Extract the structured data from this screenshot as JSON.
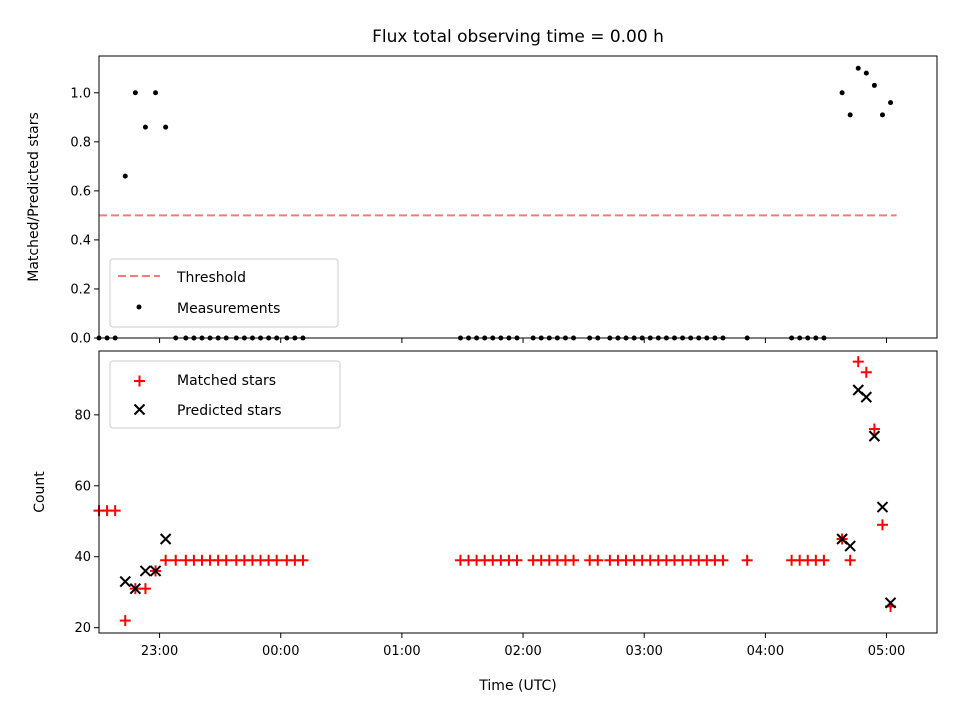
{
  "chart_data": [
    {
      "type": "scatter",
      "title": "Flux total observing time = 0.00 h",
      "xlabel": "",
      "ylabel": "Matched/Predicted stars",
      "xlim": [
        "22:30",
        "05:25"
      ],
      "ylim": [
        0,
        1.15
      ],
      "yticks": [
        0.0,
        0.2,
        0.4,
        0.6,
        0.8,
        1.0
      ],
      "ytick_labels": [
        "0.0",
        "0.2",
        "0.4",
        "0.6",
        "0.8",
        "1.0"
      ],
      "legend_position": "lower-left",
      "series": [
        {
          "name": "Threshold",
          "style": "dashed-line",
          "color": "#ff7777",
          "points": [
            [
              "22:30",
              0.5
            ],
            [
              "05:05",
              0.5
            ]
          ]
        },
        {
          "name": "Measurements",
          "style": "dot",
          "color": "#000000",
          "points": [
            [
              "22:30",
              0.0
            ],
            [
              "22:34",
              0.0
            ],
            [
              "22:38",
              0.0
            ],
            [
              "22:43",
              0.66
            ],
            [
              "22:48",
              1.0
            ],
            [
              "22:53",
              0.86
            ],
            [
              "22:58",
              1.0
            ],
            [
              "23:03",
              0.86
            ],
            [
              "23:08",
              0.0
            ],
            [
              "23:13",
              0.0
            ],
            [
              "23:17",
              0.0
            ],
            [
              "23:21",
              0.0
            ],
            [
              "23:25",
              0.0
            ],
            [
              "23:29",
              0.0
            ],
            [
              "23:33",
              0.0
            ],
            [
              "23:38",
              0.0
            ],
            [
              "23:42",
              0.0
            ],
            [
              "23:46",
              0.0
            ],
            [
              "23:50",
              0.0
            ],
            [
              "23:54",
              0.0
            ],
            [
              "23:58",
              0.0
            ],
            [
              "00:03",
              0.0
            ],
            [
              "00:07",
              0.0
            ],
            [
              "00:11",
              0.0
            ],
            [
              "01:29",
              0.0
            ],
            [
              "01:33",
              0.0
            ],
            [
              "01:37",
              0.0
            ],
            [
              "01:41",
              0.0
            ],
            [
              "01:45",
              0.0
            ],
            [
              "01:49",
              0.0
            ],
            [
              "01:53",
              0.0
            ],
            [
              "01:57",
              0.0
            ],
            [
              "02:05",
              0.0
            ],
            [
              "02:09",
              0.0
            ],
            [
              "02:13",
              0.0
            ],
            [
              "02:17",
              0.0
            ],
            [
              "02:21",
              0.0
            ],
            [
              "02:25",
              0.0
            ],
            [
              "02:33",
              0.0
            ],
            [
              "02:37",
              0.0
            ],
            [
              "02:43",
              0.0
            ],
            [
              "02:47",
              0.0
            ],
            [
              "02:51",
              0.0
            ],
            [
              "02:55",
              0.0
            ],
            [
              "02:59",
              0.0
            ],
            [
              "03:03",
              0.0
            ],
            [
              "03:07",
              0.0
            ],
            [
              "03:11",
              0.0
            ],
            [
              "03:15",
              0.0
            ],
            [
              "03:19",
              0.0
            ],
            [
              "03:23",
              0.0
            ],
            [
              "03:27",
              0.0
            ],
            [
              "03:31",
              0.0
            ],
            [
              "03:35",
              0.0
            ],
            [
              "03:39",
              0.0
            ],
            [
              "03:51",
              0.0
            ],
            [
              "04:13",
              0.0
            ],
            [
              "04:17",
              0.0
            ],
            [
              "04:21",
              0.0
            ],
            [
              "04:25",
              0.0
            ],
            [
              "04:29",
              0.0
            ],
            [
              "04:38",
              1.0
            ],
            [
              "04:42",
              0.91
            ],
            [
              "04:46",
              1.1
            ],
            [
              "04:50",
              1.08
            ],
            [
              "04:54",
              1.03
            ],
            [
              "04:58",
              0.91
            ],
            [
              "05:02",
              0.96
            ]
          ]
        }
      ]
    },
    {
      "type": "scatter",
      "title": "",
      "xlabel": "Time (UTC)",
      "ylabel": "Count",
      "xlim": [
        "22:30",
        "05:25"
      ],
      "ylim": [
        18.5,
        98
      ],
      "yticks": [
        20,
        40,
        60,
        80
      ],
      "ytick_labels": [
        "20",
        "40",
        "60",
        "80"
      ],
      "xticks": [
        "23:00",
        "00:00",
        "01:00",
        "02:00",
        "03:00",
        "04:00",
        "05:00"
      ],
      "xtick_labels": [
        "23:00",
        "00:00",
        "01:00",
        "02:00",
        "03:00",
        "04:00",
        "05:00"
      ],
      "legend_position": "top-left",
      "series": [
        {
          "name": "Matched stars",
          "style": "plus",
          "color": "#ff0000",
          "points": [
            [
              "22:30",
              53
            ],
            [
              "22:34",
              53
            ],
            [
              "22:38",
              53
            ],
            [
              "22:43",
              22
            ],
            [
              "22:48",
              31
            ],
            [
              "22:53",
              31
            ],
            [
              "22:58",
              36
            ],
            [
              "23:03",
              39
            ],
            [
              "23:08",
              39
            ],
            [
              "23:13",
              39
            ],
            [
              "23:17",
              39
            ],
            [
              "23:21",
              39
            ],
            [
              "23:25",
              39
            ],
            [
              "23:29",
              39
            ],
            [
              "23:33",
              39
            ],
            [
              "23:38",
              39
            ],
            [
              "23:42",
              39
            ],
            [
              "23:46",
              39
            ],
            [
              "23:50",
              39
            ],
            [
              "23:54",
              39
            ],
            [
              "23:58",
              39
            ],
            [
              "00:03",
              39
            ],
            [
              "00:07",
              39
            ],
            [
              "00:11",
              39
            ],
            [
              "01:29",
              39
            ],
            [
              "01:33",
              39
            ],
            [
              "01:37",
              39
            ],
            [
              "01:41",
              39
            ],
            [
              "01:45",
              39
            ],
            [
              "01:49",
              39
            ],
            [
              "01:53",
              39
            ],
            [
              "01:57",
              39
            ],
            [
              "02:05",
              39
            ],
            [
              "02:09",
              39
            ],
            [
              "02:13",
              39
            ],
            [
              "02:17",
              39
            ],
            [
              "02:21",
              39
            ],
            [
              "02:25",
              39
            ],
            [
              "02:33",
              39
            ],
            [
              "02:37",
              39
            ],
            [
              "02:43",
              39
            ],
            [
              "02:47",
              39
            ],
            [
              "02:51",
              39
            ],
            [
              "02:55",
              39
            ],
            [
              "02:59",
              39
            ],
            [
              "03:03",
              39
            ],
            [
              "03:07",
              39
            ],
            [
              "03:11",
              39
            ],
            [
              "03:15",
              39
            ],
            [
              "03:19",
              39
            ],
            [
              "03:23",
              39
            ],
            [
              "03:27",
              39
            ],
            [
              "03:31",
              39
            ],
            [
              "03:35",
              39
            ],
            [
              "03:39",
              39
            ],
            [
              "03:51",
              39
            ],
            [
              "04:13",
              39
            ],
            [
              "04:17",
              39
            ],
            [
              "04:21",
              39
            ],
            [
              "04:25",
              39
            ],
            [
              "04:29",
              39
            ],
            [
              "04:38",
              45
            ],
            [
              "04:42",
              39
            ],
            [
              "04:46",
              95
            ],
            [
              "04:50",
              92
            ],
            [
              "04:54",
              76
            ],
            [
              "04:58",
              49
            ],
            [
              "05:02",
              26
            ]
          ]
        },
        {
          "name": "Predicted stars",
          "style": "x",
          "color": "#000000",
          "points": [
            [
              "22:43",
              33
            ],
            [
              "22:48",
              31
            ],
            [
              "22:53",
              36
            ],
            [
              "22:58",
              36
            ],
            [
              "23:03",
              45
            ],
            [
              "04:38",
              45
            ],
            [
              "04:42",
              43
            ],
            [
              "04:46",
              87
            ],
            [
              "04:50",
              85
            ],
            [
              "04:54",
              74
            ],
            [
              "04:58",
              54
            ],
            [
              "05:02",
              27
            ]
          ]
        }
      ]
    }
  ]
}
